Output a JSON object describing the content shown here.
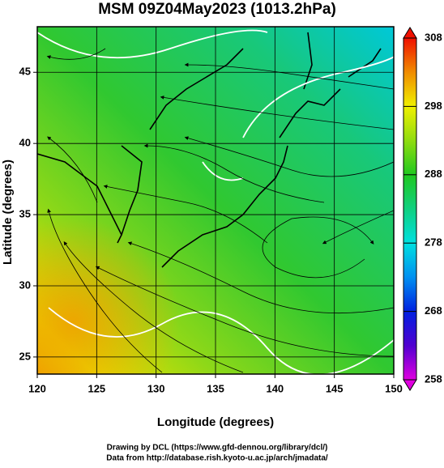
{
  "chart_data": {
    "type": "map",
    "title": "MSM 09Z04May2023 (1013.2hPa)",
    "xlabel": "Longitude (degrees)",
    "ylabel": "Latitude  (degrees)",
    "xlim": [
      120,
      150
    ],
    "xticks": [
      120,
      125,
      130,
      135,
      140,
      145,
      150
    ],
    "ylim": [
      23.8,
      48.2
    ],
    "yticks": [
      25,
      30,
      35,
      40,
      45
    ],
    "grid": true,
    "clim": [
      258,
      308
    ],
    "cticks": [
      258,
      268,
      278,
      288,
      298,
      308
    ],
    "colormap": [
      "#e000e0",
      "#5000d0",
      "#0020e0",
      "#0090f0",
      "#00e0e0",
      "#10d080",
      "#20c820",
      "#90dc10",
      "#f0f000",
      "#f08c00",
      "#f01000"
    ],
    "credits": [
      "Drawing by DCL (https://www.gfd-dennou.org/library/dcl/)",
      "Data from http://database.rish.kyoto-u.ac.jp/arch/jmadata/"
    ]
  }
}
